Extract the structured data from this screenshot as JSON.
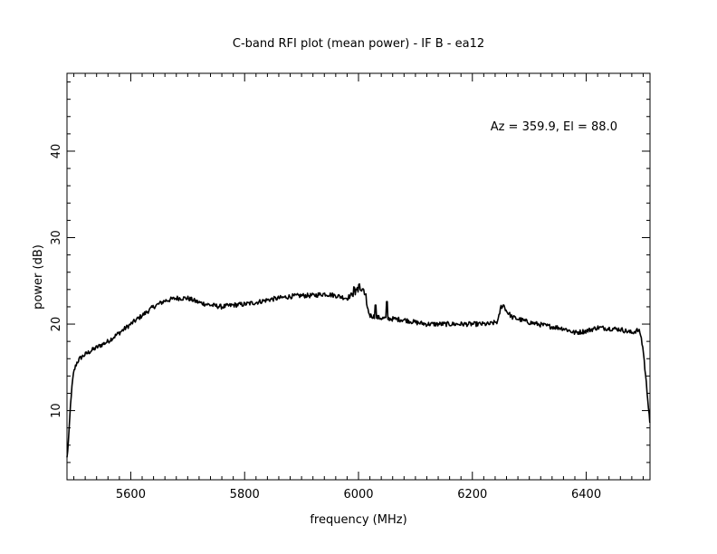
{
  "chart_data": {
    "type": "line",
    "title": "C-band RFI plot (mean power) - IF B - ea12",
    "xlabel": "frequency (MHz)",
    "ylabel": "power (dB)",
    "annotation": "Az = 359.9, El = 88.0",
    "xlim": [
      5488,
      6512
    ],
    "ylim": [
      2,
      49
    ],
    "x_ticks": [
      5600,
      5800,
      6000,
      6200,
      6400
    ],
    "y_ticks": [
      10,
      20,
      30,
      40
    ],
    "x_tick_labels": [
      "5600",
      "5800",
      "6000",
      "6200",
      "6400"
    ],
    "y_tick_labels": [
      "10",
      "20",
      "30",
      "40"
    ],
    "grid": false,
    "line_color": "#000000",
    "series": [
      {
        "x": [
          5488,
          5490,
          5492,
          5495,
          5498,
          5500,
          5505,
          5510,
          5520,
          5540,
          5560,
          5580,
          5600,
          5620,
          5640,
          5660,
          5680,
          5700,
          5720,
          5740,
          5760,
          5780,
          5800,
          5820,
          5840,
          5860,
          5880,
          5900,
          5920,
          5940,
          5960,
          5980,
          5990,
          6000,
          6005,
          6010,
          6015,
          6020,
          6030,
          6040,
          6060,
          6080,
          6100,
          6120,
          6140,
          6160,
          6180,
          6200,
          6230,
          6245,
          6250,
          6255,
          6260,
          6270,
          6300,
          6330,
          6360,
          6380,
          6400,
          6420,
          6440,
          6460,
          6480,
          6490,
          6495,
          6500,
          6505,
          6510,
          6512
        ],
        "values": [
          4.5,
          6.0,
          8.0,
          11.5,
          13.5,
          14.5,
          15.5,
          16.0,
          16.5,
          17.3,
          18.0,
          19.0,
          20.0,
          21.0,
          22.0,
          22.7,
          23.0,
          23.0,
          22.5,
          22.2,
          22.0,
          22.2,
          22.3,
          22.5,
          22.8,
          23.0,
          23.2,
          23.3,
          23.3,
          23.5,
          23.3,
          23.0,
          23.5,
          24.0,
          23.8,
          23.5,
          22.0,
          21.0,
          20.8,
          20.7,
          20.6,
          20.5,
          20.2,
          20.0,
          20.0,
          20.0,
          20.0,
          20.0,
          20.0,
          20.3,
          22.0,
          22.2,
          21.5,
          20.8,
          20.2,
          19.8,
          19.5,
          19.0,
          19.2,
          19.6,
          19.5,
          19.4,
          19.0,
          19.3,
          19.0,
          17.0,
          13.5,
          10.0,
          8.5
        ]
      }
    ]
  }
}
